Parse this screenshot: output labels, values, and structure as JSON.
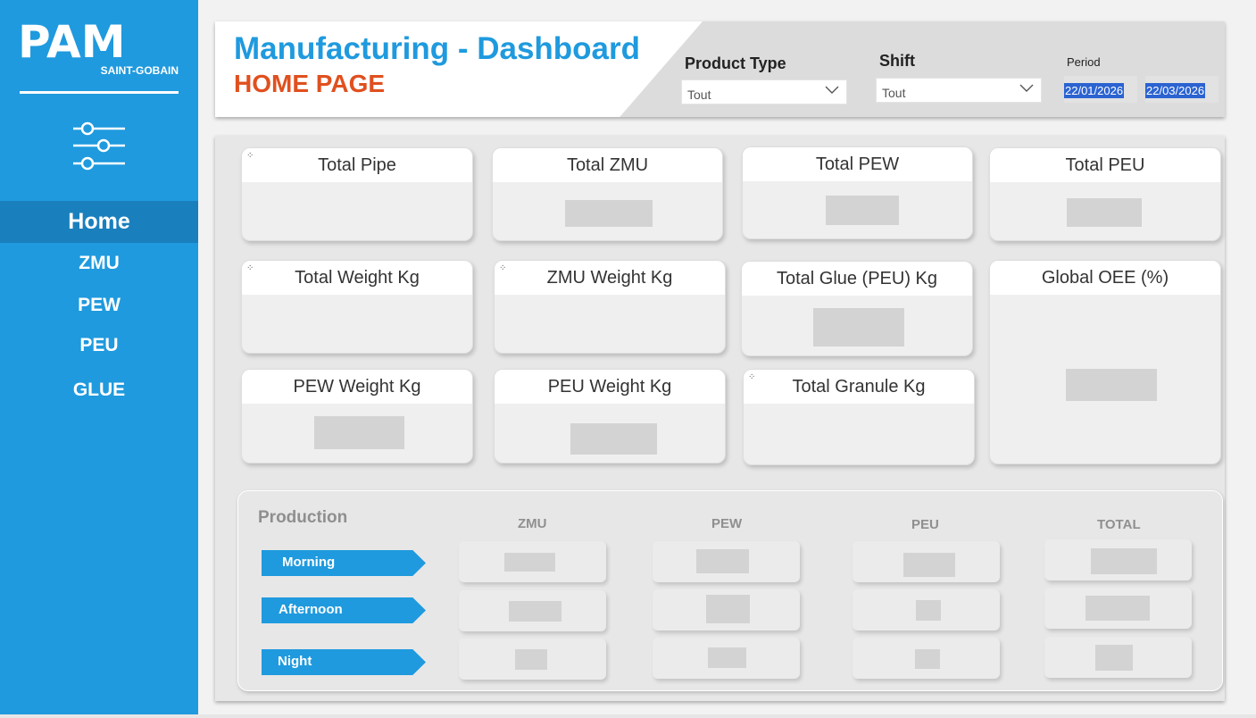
{
  "logo": {
    "brand": "PAM",
    "sub": "SAINT-GOBAIN"
  },
  "sidebar": {
    "items": [
      {
        "label": "Home"
      },
      {
        "label": "ZMU"
      },
      {
        "label": "PEW"
      },
      {
        "label": "PEU"
      },
      {
        "label": "GLUE"
      }
    ]
  },
  "header": {
    "title": "Manufacturing - Dashboard",
    "subtitle": "HOME PAGE",
    "filters": {
      "product_type": {
        "label": "Product Type",
        "value": "Tout"
      },
      "shift": {
        "label": "Shift",
        "value": "Tout"
      },
      "period": {
        "label": "Period",
        "start": "22/01/2026",
        "end": "22/03/2026"
      }
    }
  },
  "cards": [
    {
      "title": "Total Pipe"
    },
    {
      "title": "Total ZMU"
    },
    {
      "title": "Total PEW"
    },
    {
      "title": "Total PEU"
    },
    {
      "title": "Total Weight Kg"
    },
    {
      "title": "ZMU Weight Kg"
    },
    {
      "title": "Total Glue (PEU) Kg"
    },
    {
      "title": "Global OEE (%)"
    },
    {
      "title": "PEW Weight Kg"
    },
    {
      "title": "PEU Weight Kg"
    },
    {
      "title": "Total Granule Kg"
    }
  ],
  "production": {
    "title": "Production",
    "columns": [
      "ZMU",
      "PEW",
      "PEU",
      "TOTAL"
    ],
    "rows": [
      {
        "label": "Morning"
      },
      {
        "label": "Afternoon"
      },
      {
        "label": "Night"
      }
    ]
  },
  "colors": {
    "accent": "#1f9ade",
    "title_orange": "#e0501f",
    "nav_active": "#1980bd"
  }
}
